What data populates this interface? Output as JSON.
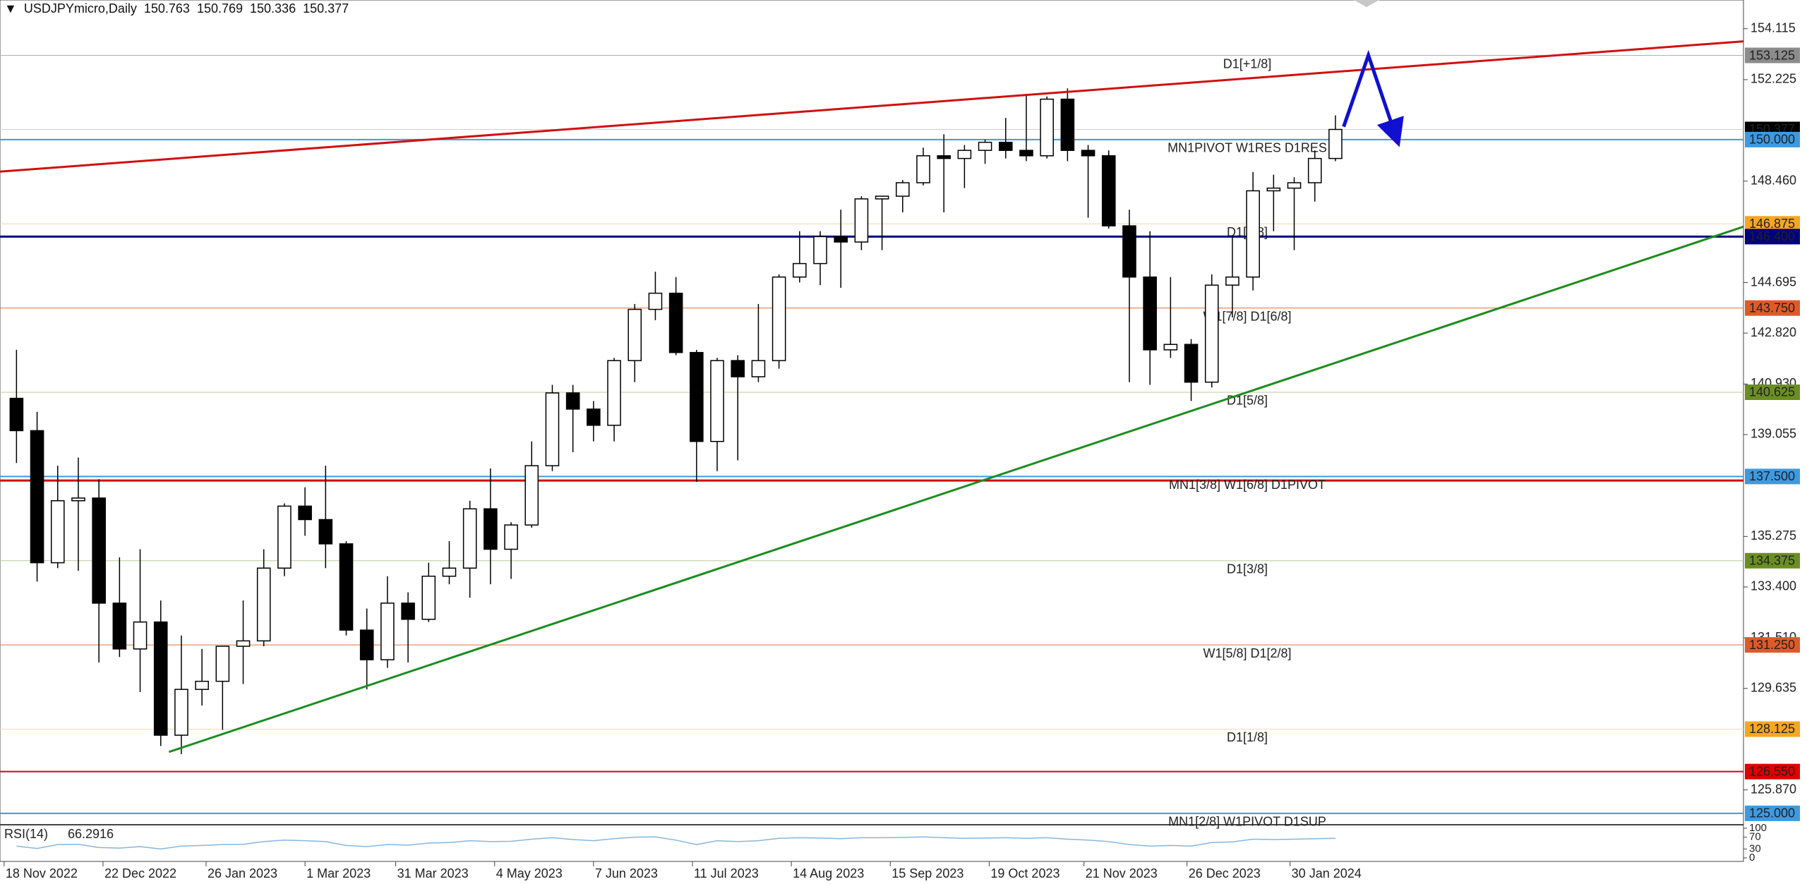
{
  "chart_data": {
    "type": "candlestick",
    "symbol": "USDJPYmicro,Daily",
    "ohlc": [
      150.763,
      150.769,
      150.336,
      150.377
    ],
    "xlim": [
      "2022-11-17",
      "2024-07-02"
    ],
    "ylim": [
      124.63,
      155.18
    ],
    "xticks": [
      {
        "value": "2022-11-18",
        "label": "18 Nov 2022"
      },
      {
        "value": "2022-12-22",
        "label": "22 Dec 2022"
      },
      {
        "value": "2023-01-26",
        "label": "26 Jan 2023"
      },
      {
        "value": "2023-03-01",
        "label": "1 Mar 2023"
      },
      {
        "value": "2023-03-31",
        "label": "31 Mar 2023"
      },
      {
        "value": "2023-05-04",
        "label": "4 May 2023"
      },
      {
        "value": "2023-06-07",
        "label": "7 Jun 2023"
      },
      {
        "value": "2023-07-11",
        "label": "11 Jul 2023"
      },
      {
        "value": "2023-08-14",
        "label": "14 Aug 2023"
      },
      {
        "value": "2023-09-15",
        "label": "15 Sep 2023"
      },
      {
        "value": "2023-10-19",
        "label": "19 Oct 2023"
      },
      {
        "value": "2023-11-21",
        "label": "21 Nov 2023"
      },
      {
        "value": "2023-12-26",
        "label": "26 Dec 2023"
      },
      {
        "value": "2024-01-30",
        "label": "30 Jan 2024"
      }
    ],
    "yticks": [
      154.115,
      152.225,
      {
        "value": 148.46,
        "label": "148.460"
      },
      144.695,
      {
        "value": 142.82,
        "label": "142.820"
      },
      {
        "value": 140.93,
        "label": "140.930"
      },
      139.055,
      135.275,
      {
        "value": 133.4,
        "label": "133.400"
      },
      {
        "value": 131.51,
        "label": "131.510"
      },
      129.635,
      {
        "value": 125.87,
        "label": "125.870"
      }
    ],
    "up_color": "#ffffff",
    "down_color": "#000000",
    "edge_color": "#000000",
    "x": [
      "2022-11-21",
      "2022-11-28",
      "2022-12-05",
      "2022-12-12",
      "2022-12-19",
      "2022-12-26",
      "2023-01-02",
      "2023-01-09",
      "2023-01-16",
      "2023-01-23",
      "2023-01-30",
      "2023-02-06",
      "2023-02-13",
      "2023-02-20",
      "2023-02-27",
      "2023-03-06",
      "2023-03-13",
      "2023-03-20",
      "2023-03-27",
      "2023-04-03",
      "2023-04-10",
      "2023-04-17",
      "2023-04-24",
      "2023-05-01",
      "2023-05-08",
      "2023-05-15",
      "2023-05-22",
      "2023-05-29",
      "2023-06-05",
      "2023-06-12",
      "2023-06-19",
      "2023-06-26",
      "2023-07-03",
      "2023-07-10",
      "2023-07-17",
      "2023-07-24",
      "2023-07-31",
      "2023-08-07",
      "2023-08-14",
      "2023-08-21",
      "2023-08-28",
      "2023-09-04",
      "2023-09-11",
      "2023-09-18",
      "2023-09-25",
      "2023-10-02",
      "2023-10-09",
      "2023-10-16",
      "2023-10-23",
      "2023-10-30",
      "2023-11-06",
      "2023-11-13",
      "2023-11-20",
      "2023-11-27",
      "2023-12-04",
      "2023-12-11",
      "2023-12-18",
      "2023-12-25",
      "2024-01-01",
      "2024-01-08",
      "2024-01-15",
      "2024-01-22",
      "2024-01-29",
      "2024-02-05",
      "2024-02-12"
    ],
    "open": [
      140.4,
      139.2,
      134.3,
      136.6,
      136.7,
      132.8,
      131.1,
      132.1,
      127.9,
      129.6,
      129.9,
      131.2,
      131.4,
      134.1,
      136.4,
      135.9,
      135.0,
      131.8,
      130.7,
      132.8,
      132.2,
      133.8,
      134.1,
      136.3,
      134.8,
      135.7,
      137.9,
      140.6,
      140.0,
      139.4,
      141.8,
      143.7,
      144.3,
      142.1,
      138.8,
      141.8,
      141.2,
      141.8,
      144.9,
      145.4,
      146.4,
      146.2,
      147.8,
      147.9,
      148.4,
      149.4,
      149.3,
      149.6,
      149.9,
      149.6,
      149.4,
      151.5,
      149.6,
      149.4,
      146.8,
      144.9,
      142.2,
      142.4,
      141.0,
      144.6,
      144.9,
      148.1,
      148.2,
      148.4,
      149.3
    ],
    "high": [
      142.2,
      139.9,
      137.9,
      138.2,
      137.4,
      134.5,
      134.8,
      132.9,
      131.6,
      131.1,
      131.2,
      132.9,
      134.8,
      136.5,
      137.1,
      137.9,
      135.1,
      132.6,
      133.8,
      133.2,
      134.3,
      135.1,
      136.6,
      137.8,
      135.8,
      138.8,
      140.9,
      140.9,
      140.3,
      141.9,
      143.9,
      145.1,
      144.9,
      142.2,
      141.9,
      142.0,
      143.9,
      145.0,
      146.6,
      146.6,
      147.4,
      147.9,
      147.9,
      148.5,
      149.7,
      150.2,
      149.8,
      150.0,
      150.8,
      151.7,
      151.6,
      151.9,
      149.8,
      149.6,
      147.4,
      146.6,
      144.9,
      142.6,
      145.0,
      146.4,
      148.8,
      148.7,
      148.6,
      149.6,
      150.9
    ],
    "low": [
      138.0,
      133.6,
      134.1,
      134.0,
      130.6,
      130.8,
      129.5,
      127.5,
      127.2,
      129.0,
      128.1,
      129.8,
      131.2,
      133.8,
      135.3,
      134.1,
      131.6,
      129.6,
      130.4,
      130.6,
      132.1,
      133.5,
      133.0,
      133.5,
      133.7,
      135.6,
      137.7,
      138.4,
      138.8,
      138.8,
      141.0,
      143.3,
      142.0,
      137.3,
      137.7,
      138.1,
      141.0,
      141.5,
      144.7,
      144.6,
      144.5,
      145.9,
      145.9,
      147.3,
      148.3,
      147.3,
      148.2,
      149.1,
      149.3,
      149.2,
      149.3,
      149.2,
      147.1,
      146.7,
      141.0,
      140.9,
      141.9,
      140.3,
      140.8,
      143.4,
      144.4,
      146.6,
      145.9,
      147.7,
      149.2
    ],
    "close": [
      139.2,
      134.3,
      136.6,
      136.7,
      132.8,
      131.1,
      132.1,
      127.9,
      129.6,
      129.9,
      131.2,
      131.4,
      134.1,
      136.4,
      135.9,
      135.0,
      131.8,
      130.7,
      132.8,
      132.2,
      133.8,
      134.1,
      136.3,
      134.8,
      135.7,
      137.9,
      140.6,
      140.0,
      139.4,
      141.8,
      143.7,
      144.3,
      142.1,
      138.8,
      141.8,
      141.2,
      141.8,
      144.9,
      145.4,
      146.4,
      146.2,
      147.8,
      147.9,
      148.4,
      149.4,
      149.3,
      149.6,
      149.9,
      149.6,
      149.4,
      151.5,
      149.6,
      149.4,
      146.8,
      144.9,
      142.2,
      142.4,
      141.0,
      144.6,
      144.9,
      148.1,
      148.2,
      148.4,
      149.3,
      150.377
    ],
    "levels": [
      {
        "price": 153.125,
        "name": "D1[+1/8]",
        "color": "#b0b0b0",
        "tag_color": "#8c8c8c",
        "width": 1
      },
      {
        "price": 150.377,
        "color": "#d0d0d0",
        "tag_color": "#000000",
        "width": 1
      },
      {
        "price": {
          "value": 150,
          "label": "150.000"
        },
        "name": "MN1PIVOT W1RES D1RES",
        "color": "#3d9ae0",
        "tag_color": "#3d9ae0",
        "width": 2
      },
      {
        "price": 146.875,
        "name": "D1[7/8]",
        "color": "#e6dcae",
        "tag_color": "#f5a623",
        "width": 1
      },
      {
        "price": {
          "value": 146.4,
          "label": "146.400"
        },
        "color": "#000080",
        "tag_color": "#000080",
        "width": 3
      },
      {
        "price": {
          "value": 143.75,
          "label": "143.750"
        },
        "name": "W1[7/8] D1[6/8]",
        "color": "#e8703a",
        "tag_color": "#e05a28",
        "width": 1
      },
      {
        "price": 140.625,
        "name": "D1[5/8]",
        "color": "#bcc8a0",
        "tag_color": "#6b8e23",
        "width": 1
      },
      {
        "price": 137.35,
        "color": "#d40000",
        "width": 3
      },
      {
        "price": {
          "value": 137.5,
          "label": "137.500"
        },
        "name": "MN1[3/8] W1[6/8] D1PIVOT",
        "color": "#3d9ae0",
        "tag_color": "#3d9ae0",
        "width": 2
      },
      {
        "price": 134.375,
        "name": "D1[3/8]",
        "color": "#bcc8a0",
        "tag_color": "#6b8e23",
        "width": 1
      },
      {
        "price": {
          "value": 131.25,
          "label": "131.250"
        },
        "name": "W1[5/8] D1[2/8]",
        "color": "#e8703a",
        "tag_color": "#e05a28",
        "width": 1
      },
      {
        "price": 128.125,
        "name": "D1[1/8]",
        "color": "#f0dca8",
        "tag_color": "#f5a623",
        "width": 1
      },
      {
        "price": {
          "value": 126.55,
          "label": "126.550"
        },
        "color": "#e00000",
        "tag_color": "#e00000",
        "width": 2
      },
      {
        "price": {
          "value": 125,
          "label": "125.000"
        },
        "name": "MN1[2/8] W1PIVOT D1SUP",
        "color": "#3d9ae0",
        "tag_color": "#3d9ae0",
        "width": 2
      }
    ],
    "trendlines": [
      {
        "color": "#d01010",
        "x": [
          "2022-11-17",
          "2024-07-02"
        ],
        "y": [
          148.81,
          153.645
        ]
      },
      {
        "color": "#1e8c1e",
        "x": [
          "2023-01-13",
          "2024-07-02"
        ],
        "y": [
          127.28,
          146.77
        ]
      },
      {
        "color": "#1010d0",
        "arrow": true,
        "x": [
          "2024-02-16",
          "2024-02-26",
          "2024-03-06"
        ],
        "y": [
          150.48,
          153.13,
          149.97
        ]
      }
    ],
    "rsi": {
      "title": "RSI(14)",
      "value": 66.2916,
      "color": "#86b6e0",
      "ylim": [
        0,
        100
      ],
      "yticks": [
        0,
        30,
        70,
        100
      ],
      "values": [
        40,
        32,
        45,
        46,
        35,
        33,
        38,
        30,
        40,
        42,
        45,
        46,
        55,
        60,
        58,
        55,
        42,
        38,
        45,
        43,
        50,
        52,
        58,
        55,
        56,
        63,
        68,
        62,
        58,
        65,
        70,
        71,
        60,
        45,
        58,
        55,
        58,
        66,
        68,
        67,
        65,
        68,
        68,
        69,
        71,
        68,
        66,
        67,
        68,
        66,
        68,
        63,
        60,
        55,
        45,
        40,
        42,
        40,
        52,
        54,
        63,
        62,
        63,
        65,
        66.2916
      ]
    }
  }
}
